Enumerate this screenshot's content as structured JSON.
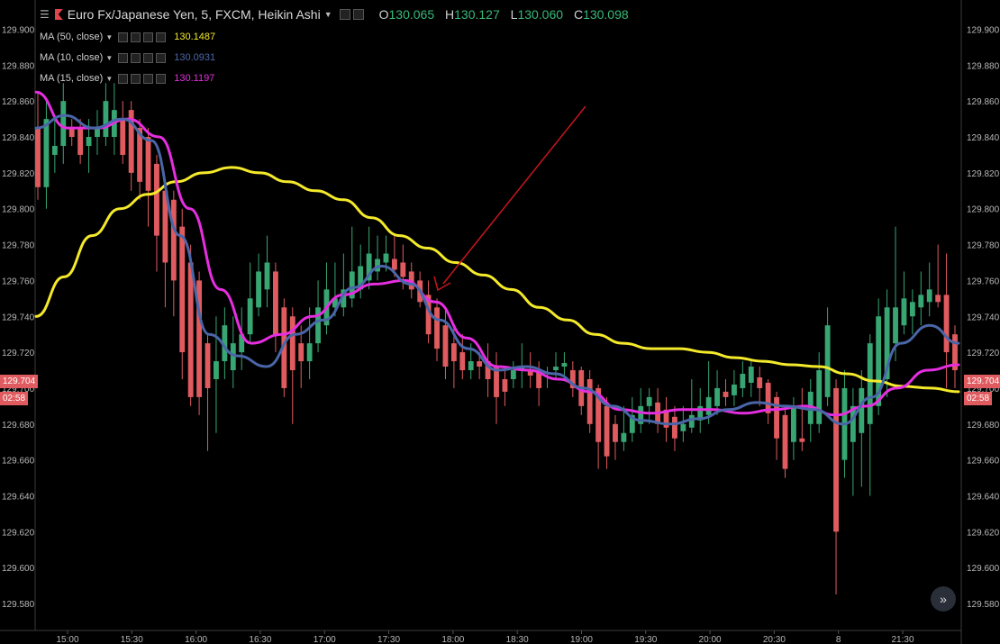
{
  "header": {
    "title": "Euro Fx/Japanese Yen, 5, FXCM, Heikin Ashi",
    "ohlc": [
      {
        "key": "O",
        "value": "130.065"
      },
      {
        "key": "H",
        "value": "130.127"
      },
      {
        "key": "L",
        "value": "130.060"
      },
      {
        "key": "C",
        "value": "130.098"
      }
    ]
  },
  "indicators": [
    {
      "label": "MA (50, close)",
      "value": "130.1487",
      "color": "#f4ea2b"
    },
    {
      "label": "MA (10, close)",
      "value": "130.0931",
      "color": "#4a66a8"
    },
    {
      "label": "MA (15, close)",
      "value": "130.1197",
      "color": "#e62ee0"
    }
  ],
  "price_tags": {
    "price": "129.704",
    "countdown": "02:58",
    "color": "#e05b5f"
  },
  "colors": {
    "up": "#37a672",
    "down": "#e05b5f",
    "arrow": "#c8161d",
    "background": "#000000"
  },
  "scroll_icon": "double-chevron-right-icon",
  "chart_data": {
    "type": "candlestick",
    "ylim": [
      129.566,
      129.908
    ],
    "y_ticks": [
      "129.900",
      "129.880",
      "129.860",
      "129.840",
      "129.820",
      "129.800",
      "129.780",
      "129.760",
      "129.740",
      "129.720",
      "129.700",
      "129.680",
      "129.660",
      "129.640",
      "129.620",
      "129.600",
      "129.580"
    ],
    "x_ticks": [
      "15:00",
      "15:30",
      "16:00",
      "16:30",
      "17:00",
      "17:30",
      "18:00",
      "18:30",
      "19:00",
      "19:30",
      "20:00",
      "20:30",
      "8",
      "21:30"
    ],
    "candles": [
      {
        "o": 129.845,
        "h": 129.865,
        "l": 129.805,
        "c": 129.812
      },
      {
        "o": 129.812,
        "h": 129.86,
        "l": 129.8,
        "c": 129.85
      },
      {
        "o": 129.83,
        "h": 129.85,
        "l": 129.82,
        "c": 129.835
      },
      {
        "o": 129.835,
        "h": 129.87,
        "l": 129.825,
        "c": 129.86
      },
      {
        "o": 129.845,
        "h": 129.85,
        "l": 129.835,
        "c": 129.84
      },
      {
        "o": 129.845,
        "h": 129.85,
        "l": 129.825,
        "c": 129.83
      },
      {
        "o": 129.835,
        "h": 129.85,
        "l": 129.82,
        "c": 129.84
      },
      {
        "o": 129.84,
        "h": 129.855,
        "l": 129.83,
        "c": 129.845
      },
      {
        "o": 129.84,
        "h": 129.87,
        "l": 129.835,
        "c": 129.86
      },
      {
        "o": 129.84,
        "h": 129.87,
        "l": 129.83,
        "c": 129.855
      },
      {
        "o": 129.85,
        "h": 129.86,
        "l": 129.825,
        "c": 129.83
      },
      {
        "o": 129.855,
        "h": 129.86,
        "l": 129.81,
        "c": 129.82
      },
      {
        "o": 129.845,
        "h": 129.85,
        "l": 129.805,
        "c": 129.815
      },
      {
        "o": 129.84,
        "h": 129.845,
        "l": 129.79,
        "c": 129.81
      },
      {
        "o": 129.825,
        "h": 129.83,
        "l": 129.765,
        "c": 129.785
      },
      {
        "o": 129.81,
        "h": 129.815,
        "l": 129.745,
        "c": 129.77
      },
      {
        "o": 129.805,
        "h": 129.81,
        "l": 129.74,
        "c": 129.76
      },
      {
        "o": 129.79,
        "h": 129.8,
        "l": 129.705,
        "c": 129.72
      },
      {
        "o": 129.77,
        "h": 129.78,
        "l": 129.69,
        "c": 129.695
      },
      {
        "o": 129.76,
        "h": 129.765,
        "l": 129.685,
        "c": 129.695
      },
      {
        "o": 129.725,
        "h": 129.73,
        "l": 129.665,
        "c": 129.7
      },
      {
        "o": 129.705,
        "h": 129.74,
        "l": 129.675,
        "c": 129.715
      },
      {
        "o": 129.715,
        "h": 129.745,
        "l": 129.705,
        "c": 129.735
      },
      {
        "o": 129.71,
        "h": 129.74,
        "l": 129.7,
        "c": 129.725
      },
      {
        "o": 129.72,
        "h": 129.745,
        "l": 129.71,
        "c": 129.73
      },
      {
        "o": 129.73,
        "h": 129.77,
        "l": 129.725,
        "c": 129.75
      },
      {
        "o": 129.745,
        "h": 129.775,
        "l": 129.74,
        "c": 129.765
      },
      {
        "o": 129.755,
        "h": 129.785,
        "l": 129.745,
        "c": 129.77
      },
      {
        "o": 129.765,
        "h": 129.77,
        "l": 129.72,
        "c": 129.73
      },
      {
        "o": 129.745,
        "h": 129.75,
        "l": 129.695,
        "c": 129.7
      },
      {
        "o": 129.74,
        "h": 129.745,
        "l": 129.68,
        "c": 129.71
      },
      {
        "o": 129.725,
        "h": 129.735,
        "l": 129.7,
        "c": 129.715
      },
      {
        "o": 129.715,
        "h": 129.745,
        "l": 129.705,
        "c": 129.725
      },
      {
        "o": 129.725,
        "h": 129.76,
        "l": 129.72,
        "c": 129.745
      },
      {
        "o": 129.735,
        "h": 129.77,
        "l": 129.73,
        "c": 129.755
      },
      {
        "o": 129.745,
        "h": 129.77,
        "l": 129.74,
        "c": 129.75
      },
      {
        "o": 129.745,
        "h": 129.775,
        "l": 129.74,
        "c": 129.755
      },
      {
        "o": 129.75,
        "h": 129.79,
        "l": 129.745,
        "c": 129.765
      },
      {
        "o": 129.755,
        "h": 129.78,
        "l": 129.75,
        "c": 129.768
      },
      {
        "o": 129.76,
        "h": 129.79,
        "l": 129.755,
        "c": 129.775
      },
      {
        "o": 129.765,
        "h": 129.785,
        "l": 129.76,
        "c": 129.772
      },
      {
        "o": 129.77,
        "h": 129.785,
        "l": 129.765,
        "c": 129.775
      },
      {
        "o": 129.772,
        "h": 129.785,
        "l": 129.762,
        "c": 129.766
      },
      {
        "o": 129.77,
        "h": 129.78,
        "l": 129.755,
        "c": 129.762
      },
      {
        "o": 129.765,
        "h": 129.77,
        "l": 129.75,
        "c": 129.755
      },
      {
        "o": 129.76,
        "h": 129.765,
        "l": 129.745,
        "c": 129.748
      },
      {
        "o": 129.752,
        "h": 129.76,
        "l": 129.725,
        "c": 129.73
      },
      {
        "o": 129.745,
        "h": 129.75,
        "l": 129.715,
        "c": 129.722
      },
      {
        "o": 129.735,
        "h": 129.745,
        "l": 129.705,
        "c": 129.712
      },
      {
        "o": 129.725,
        "h": 129.735,
        "l": 129.7,
        "c": 129.715
      },
      {
        "o": 129.72,
        "h": 129.73,
        "l": 129.705,
        "c": 129.71
      },
      {
        "o": 129.71,
        "h": 129.725,
        "l": 129.705,
        "c": 129.715
      },
      {
        "o": 129.715,
        "h": 129.72,
        "l": 129.705,
        "c": 129.712
      },
      {
        "o": 129.715,
        "h": 129.725,
        "l": 129.695,
        "c": 129.705
      },
      {
        "o": 129.712,
        "h": 129.72,
        "l": 129.68,
        "c": 129.695
      },
      {
        "o": 129.705,
        "h": 129.71,
        "l": 129.69,
        "c": 129.698
      },
      {
        "o": 129.705,
        "h": 129.715,
        "l": 129.7,
        "c": 129.71
      },
      {
        "o": 129.71,
        "h": 129.725,
        "l": 129.7,
        "c": 129.712
      },
      {
        "o": 129.71,
        "h": 129.72,
        "l": 129.7,
        "c": 129.707
      },
      {
        "o": 129.71,
        "h": 129.715,
        "l": 129.69,
        "c": 129.7
      },
      {
        "o": 129.708,
        "h": 129.712,
        "l": 129.7,
        "c": 129.709
      },
      {
        "o": 129.71,
        "h": 129.72,
        "l": 129.705,
        "c": 129.712
      },
      {
        "o": 129.712,
        "h": 129.72,
        "l": 129.705,
        "c": 129.714
      },
      {
        "o": 129.71,
        "h": 129.715,
        "l": 129.695,
        "c": 129.7
      },
      {
        "o": 129.71,
        "h": 129.712,
        "l": 129.685,
        "c": 129.69
      },
      {
        "o": 129.705,
        "h": 129.71,
        "l": 129.675,
        "c": 129.68
      },
      {
        "o": 129.7,
        "h": 129.702,
        "l": 129.655,
        "c": 129.67
      },
      {
        "o": 129.69,
        "h": 129.695,
        "l": 129.655,
        "c": 129.662
      },
      {
        "o": 129.68,
        "h": 129.685,
        "l": 129.66,
        "c": 129.67
      },
      {
        "o": 129.67,
        "h": 129.69,
        "l": 129.665,
        "c": 129.675
      },
      {
        "o": 129.675,
        "h": 129.695,
        "l": 129.67,
        "c": 129.685
      },
      {
        "o": 129.68,
        "h": 129.7,
        "l": 129.675,
        "c": 129.69
      },
      {
        "o": 129.69,
        "h": 129.7,
        "l": 129.68,
        "c": 129.695
      },
      {
        "o": 129.692,
        "h": 129.7,
        "l": 129.675,
        "c": 129.68
      },
      {
        "o": 129.688,
        "h": 129.695,
        "l": 129.67,
        "c": 129.678
      },
      {
        "o": 129.684,
        "h": 129.69,
        "l": 129.665,
        "c": 129.672
      },
      {
        "o": 129.676,
        "h": 129.69,
        "l": 129.67,
        "c": 129.68
      },
      {
        "o": 129.678,
        "h": 129.705,
        "l": 129.675,
        "c": 129.685
      },
      {
        "o": 129.682,
        "h": 129.7,
        "l": 129.675,
        "c": 129.69
      },
      {
        "o": 129.685,
        "h": 129.715,
        "l": 129.68,
        "c": 129.695
      },
      {
        "o": 129.69,
        "h": 129.71,
        "l": 129.685,
        "c": 129.7
      },
      {
        "o": 129.698,
        "h": 129.705,
        "l": 129.69,
        "c": 129.695
      },
      {
        "o": 129.696,
        "h": 129.71,
        "l": 129.69,
        "c": 129.702
      },
      {
        "o": 129.7,
        "h": 129.715,
        "l": 129.695,
        "c": 129.708
      },
      {
        "o": 129.703,
        "h": 129.715,
        "l": 129.695,
        "c": 129.712
      },
      {
        "o": 129.706,
        "h": 129.712,
        "l": 129.69,
        "c": 129.7
      },
      {
        "o": 129.703,
        "h": 129.705,
        "l": 129.68,
        "c": 129.686
      },
      {
        "o": 129.695,
        "h": 129.698,
        "l": 129.66,
        "c": 129.672
      },
      {
        "o": 129.685,
        "h": 129.69,
        "l": 129.65,
        "c": 129.655
      },
      {
        "o": 129.67,
        "h": 129.695,
        "l": 129.66,
        "c": 129.69
      },
      {
        "o": 129.672,
        "h": 129.7,
        "l": 129.665,
        "c": 129.67
      },
      {
        "o": 129.68,
        "h": 129.705,
        "l": 129.67,
        "c": 129.698
      },
      {
        "o": 129.68,
        "h": 129.72,
        "l": 129.675,
        "c": 129.71
      },
      {
        "o": 129.695,
        "h": 129.745,
        "l": 129.69,
        "c": 129.735
      },
      {
        "o": 129.7,
        "h": 129.705,
        "l": 129.585,
        "c": 129.62
      },
      {
        "o": 129.66,
        "h": 129.71,
        "l": 129.65,
        "c": 129.7
      },
      {
        "o": 129.67,
        "h": 129.7,
        "l": 129.64,
        "c": 129.69
      },
      {
        "o": 129.675,
        "h": 129.71,
        "l": 129.645,
        "c": 129.7
      },
      {
        "o": 129.68,
        "h": 129.73,
        "l": 129.64,
        "c": 129.725
      },
      {
        "o": 129.69,
        "h": 129.75,
        "l": 129.685,
        "c": 129.74
      },
      {
        "o": 129.705,
        "h": 129.755,
        "l": 129.695,
        "c": 129.745
      },
      {
        "o": 129.725,
        "h": 129.79,
        "l": 129.715,
        "c": 129.745
      },
      {
        "o": 129.735,
        "h": 129.765,
        "l": 129.73,
        "c": 129.75
      },
      {
        "o": 129.74,
        "h": 129.755,
        "l": 129.73,
        "c": 129.748
      },
      {
        "o": 129.745,
        "h": 129.765,
        "l": 129.735,
        "c": 129.752
      },
      {
        "o": 129.748,
        "h": 129.77,
        "l": 129.74,
        "c": 129.755
      },
      {
        "o": 129.752,
        "h": 129.78,
        "l": 129.745,
        "c": 129.748
      },
      {
        "o": 129.752,
        "h": 129.775,
        "l": 129.7,
        "c": 129.72
      },
      {
        "o": 129.73,
        "h": 129.735,
        "l": 129.7,
        "c": 129.71
      }
    ],
    "ma50": [
      129.74,
      129.762,
      129.785,
      129.8,
      129.808,
      129.815,
      129.82,
      129.823,
      129.82,
      129.815,
      129.81,
      129.805,
      129.795,
      129.785,
      129.778,
      129.77,
      129.763,
      129.755,
      129.745,
      129.738,
      129.73,
      129.725,
      129.722,
      129.722,
      129.72,
      129.717,
      129.715,
      129.713,
      129.712,
      129.708,
      129.704,
      129.701,
      129.7,
      129.698
    ],
    "ma10": [
      129.845,
      129.852,
      129.845,
      129.85,
      129.838,
      129.785,
      129.73,
      129.718,
      129.712,
      129.73,
      129.738,
      129.756,
      129.768,
      129.758,
      129.738,
      129.722,
      129.71,
      129.712,
      129.708,
      129.7,
      129.69,
      129.682,
      129.68,
      129.683,
      129.688,
      129.692,
      129.69,
      129.688,
      129.68,
      129.695,
      129.725,
      129.735,
      129.725
    ],
    "ma15": [
      129.865,
      129.845,
      129.845,
      129.85,
      129.84,
      129.8,
      129.755,
      129.725,
      129.73,
      129.74,
      129.752,
      129.758,
      129.76,
      129.748,
      129.728,
      129.712,
      129.71,
      129.705,
      129.698,
      129.688,
      129.686,
      129.688,
      129.688,
      129.686,
      129.688,
      129.69,
      129.685,
      129.69,
      129.7,
      129.71,
      129.713
    ]
  }
}
